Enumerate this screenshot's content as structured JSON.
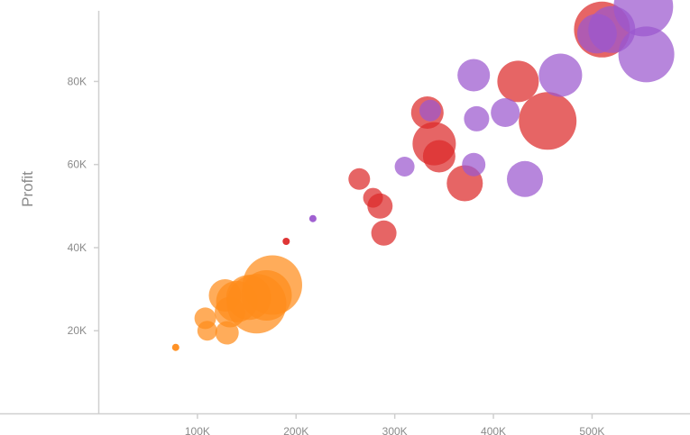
{
  "chart_data": {
    "type": "scatter",
    "title": "",
    "xlabel": "",
    "ylabel": "Profit",
    "xlim": [
      0,
      570000
    ],
    "ylim": [
      0,
      97000
    ],
    "x_ticks": [
      {
        "value": 100000,
        "label": "100K"
      },
      {
        "value": 200000,
        "label": "200K"
      },
      {
        "value": 300000,
        "label": "300K"
      },
      {
        "value": 400000,
        "label": "400K"
      },
      {
        "value": 500000,
        "label": "500K"
      }
    ],
    "y_ticks": [
      {
        "value": 20000,
        "label": "20K"
      },
      {
        "value": 40000,
        "label": "40K"
      },
      {
        "value": 60000,
        "label": "60K"
      },
      {
        "value": 80000,
        "label": "80K"
      }
    ],
    "grid": false,
    "legend": "none",
    "series": [
      {
        "color": "#ff8c1a",
        "points": [
          {
            "x": 78000,
            "y": 16000,
            "size": 4
          },
          {
            "x": 108000,
            "y": 23000,
            "size": 12
          },
          {
            "x": 110000,
            "y": 20000,
            "size": 11
          },
          {
            "x": 130000,
            "y": 19500,
            "size": 13
          },
          {
            "x": 128000,
            "y": 28500,
            "size": 18
          },
          {
            "x": 133000,
            "y": 24500,
            "size": 17
          },
          {
            "x": 140000,
            "y": 27000,
            "size": 23
          },
          {
            "x": 152000,
            "y": 28000,
            "size": 25
          },
          {
            "x": 160000,
            "y": 26500,
            "size": 33
          },
          {
            "x": 170000,
            "y": 28500,
            "size": 28
          },
          {
            "x": 176000,
            "y": 31000,
            "size": 33
          }
        ]
      },
      {
        "color": "#dd2a2a",
        "points": [
          {
            "x": 190000,
            "y": 41500,
            "size": 4
          },
          {
            "x": 264000,
            "y": 56500,
            "size": 12
          },
          {
            "x": 278000,
            "y": 52000,
            "size": 11
          },
          {
            "x": 285000,
            "y": 50000,
            "size": 14
          },
          {
            "x": 289000,
            "y": 43500,
            "size": 14
          },
          {
            "x": 333000,
            "y": 72500,
            "size": 18
          },
          {
            "x": 340000,
            "y": 65000,
            "size": 24
          },
          {
            "x": 345000,
            "y": 62000,
            "size": 18
          },
          {
            "x": 371000,
            "y": 55500,
            "size": 20
          },
          {
            "x": 425000,
            "y": 80000,
            "size": 23
          },
          {
            "x": 455000,
            "y": 70500,
            "size": 32
          },
          {
            "x": 510000,
            "y": 92500,
            "size": 31
          }
        ]
      },
      {
        "color": "#9b57cf",
        "points": [
          {
            "x": 217000,
            "y": 47000,
            "size": 4
          },
          {
            "x": 310000,
            "y": 59500,
            "size": 11
          },
          {
            "x": 336000,
            "y": 73000,
            "size": 12
          },
          {
            "x": 380000,
            "y": 60000,
            "size": 13
          },
          {
            "x": 380000,
            "y": 81500,
            "size": 18
          },
          {
            "x": 383000,
            "y": 71000,
            "size": 14
          },
          {
            "x": 412000,
            "y": 72500,
            "size": 16
          },
          {
            "x": 432000,
            "y": 56500,
            "size": 20
          },
          {
            "x": 468000,
            "y": 81500,
            "size": 24
          },
          {
            "x": 505000,
            "y": 91500,
            "size": 22
          },
          {
            "x": 520000,
            "y": 92500,
            "size": 26
          },
          {
            "x": 555000,
            "y": 86500,
            "size": 31
          },
          {
            "x": 552000,
            "y": 98000,
            "size": 33
          }
        ]
      }
    ]
  }
}
